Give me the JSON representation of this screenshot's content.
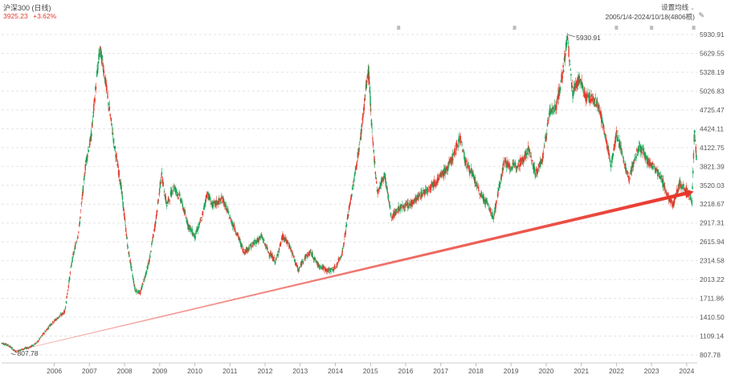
{
  "header": {
    "title": "沪深300 (日线)",
    "price": "3925.23",
    "change": "+3.62%",
    "settings_label": "设置均线",
    "date_range": "2005/1/4-2024/10/18(4806根)"
  },
  "colors": {
    "up": "#e23b2e",
    "down": "#12a150",
    "trend": "#e8352a",
    "grid": "#e3e3e3"
  },
  "chart_data": {
    "type": "candlestick",
    "y_ticks": [
      "5930.91",
      "5629.55",
      "5328.19",
      "5026.83",
      "4725.47",
      "4424.11",
      "4122.75",
      "3821.39",
      "3520.03",
      "3218.67",
      "2917.31",
      "2615.94",
      "2314.58",
      "2013.22",
      "1711.86",
      "1410.50",
      "1109.14",
      "807.78"
    ],
    "ylim": [
      807.78,
      5930.91
    ],
    "x_ticks": [
      "2006",
      "2007",
      "2008",
      "2009",
      "2010",
      "2011",
      "2012",
      "2013",
      "2014",
      "2015",
      "2016",
      "2017",
      "2018",
      "2019",
      "2020",
      "2021",
      "2022",
      "2023",
      "2024"
    ],
    "xlim": [
      2005.0,
      2024.8
    ],
    "peak": {
      "label": "5930.91",
      "x": 2021.1,
      "value": 5930.91
    },
    "low": {
      "label": "807.78",
      "x": 2005.4,
      "value": 807.78
    },
    "trendline": {
      "start": {
        "x": 2005.6,
        "value": 900
      },
      "end": {
        "x": 2024.7,
        "value": 3420
      }
    },
    "series": [
      {
        "x": 2005.0,
        "value": 1000
      },
      {
        "x": 2005.2,
        "value": 960
      },
      {
        "x": 2005.4,
        "value": 860
      },
      {
        "x": 2005.6,
        "value": 900
      },
      {
        "x": 2005.8,
        "value": 930
      },
      {
        "x": 2006.0,
        "value": 1000
      },
      {
        "x": 2006.2,
        "value": 1150
      },
      {
        "x": 2006.4,
        "value": 1300
      },
      {
        "x": 2006.6,
        "value": 1400
      },
      {
        "x": 2006.8,
        "value": 1500
      },
      {
        "x": 2007.0,
        "value": 2300
      },
      {
        "x": 2007.2,
        "value": 2800
      },
      {
        "x": 2007.4,
        "value": 3900
      },
      {
        "x": 2007.55,
        "value": 4300
      },
      {
        "x": 2007.7,
        "value": 5200
      },
      {
        "x": 2007.8,
        "value": 5700
      },
      {
        "x": 2007.9,
        "value": 5400
      },
      {
        "x": 2008.0,
        "value": 5000
      },
      {
        "x": 2008.2,
        "value": 4200
      },
      {
        "x": 2008.4,
        "value": 3500
      },
      {
        "x": 2008.6,
        "value": 2500
      },
      {
        "x": 2008.8,
        "value": 1850
      },
      {
        "x": 2008.95,
        "value": 1800
      },
      {
        "x": 2009.2,
        "value": 2300
      },
      {
        "x": 2009.4,
        "value": 3000
      },
      {
        "x": 2009.55,
        "value": 3700
      },
      {
        "x": 2009.7,
        "value": 3200
      },
      {
        "x": 2009.9,
        "value": 3500
      },
      {
        "x": 2010.1,
        "value": 3300
      },
      {
        "x": 2010.3,
        "value": 2900
      },
      {
        "x": 2010.5,
        "value": 2700
      },
      {
        "x": 2010.7,
        "value": 3000
      },
      {
        "x": 2010.85,
        "value": 3400
      },
      {
        "x": 2011.0,
        "value": 3200
      },
      {
        "x": 2011.3,
        "value": 3300
      },
      {
        "x": 2011.5,
        "value": 3000
      },
      {
        "x": 2011.7,
        "value": 2750
      },
      {
        "x": 2011.9,
        "value": 2450
      },
      {
        "x": 2012.2,
        "value": 2600
      },
      {
        "x": 2012.4,
        "value": 2700
      },
      {
        "x": 2012.6,
        "value": 2450
      },
      {
        "x": 2012.8,
        "value": 2300
      },
      {
        "x": 2013.0,
        "value": 2700
      },
      {
        "x": 2013.2,
        "value": 2550
      },
      {
        "x": 2013.45,
        "value": 2150
      },
      {
        "x": 2013.6,
        "value": 2350
      },
      {
        "x": 2013.8,
        "value": 2450
      },
      {
        "x": 2014.0,
        "value": 2250
      },
      {
        "x": 2014.3,
        "value": 2150
      },
      {
        "x": 2014.5,
        "value": 2200
      },
      {
        "x": 2014.7,
        "value": 2450
      },
      {
        "x": 2014.85,
        "value": 3000
      },
      {
        "x": 2015.0,
        "value": 3500
      },
      {
        "x": 2015.2,
        "value": 4200
      },
      {
        "x": 2015.4,
        "value": 5200
      },
      {
        "x": 2015.45,
        "value": 5350
      },
      {
        "x": 2015.55,
        "value": 4300
      },
      {
        "x": 2015.7,
        "value": 3400
      },
      {
        "x": 2015.9,
        "value": 3700
      },
      {
        "x": 2016.1,
        "value": 3000
      },
      {
        "x": 2016.3,
        "value": 3150
      },
      {
        "x": 2016.6,
        "value": 3200
      },
      {
        "x": 2016.9,
        "value": 3350
      },
      {
        "x": 2017.1,
        "value": 3450
      },
      {
        "x": 2017.4,
        "value": 3600
      },
      {
        "x": 2017.7,
        "value": 3800
      },
      {
        "x": 2017.9,
        "value": 4050
      },
      {
        "x": 2018.05,
        "value": 4300
      },
      {
        "x": 2018.2,
        "value": 3900
      },
      {
        "x": 2018.4,
        "value": 3700
      },
      {
        "x": 2018.6,
        "value": 3400
      },
      {
        "x": 2018.8,
        "value": 3250
      },
      {
        "x": 2019.0,
        "value": 3000
      },
      {
        "x": 2019.3,
        "value": 3900
      },
      {
        "x": 2019.5,
        "value": 3800
      },
      {
        "x": 2019.8,
        "value": 3900
      },
      {
        "x": 2020.0,
        "value": 4100
      },
      {
        "x": 2020.2,
        "value": 3700
      },
      {
        "x": 2020.4,
        "value": 3950
      },
      {
        "x": 2020.6,
        "value": 4700
      },
      {
        "x": 2020.8,
        "value": 4800
      },
      {
        "x": 2021.0,
        "value": 5400
      },
      {
        "x": 2021.1,
        "value": 5900
      },
      {
        "x": 2021.25,
        "value": 5000
      },
      {
        "x": 2021.45,
        "value": 5250
      },
      {
        "x": 2021.6,
        "value": 4950
      },
      {
        "x": 2021.8,
        "value": 4900
      },
      {
        "x": 2022.0,
        "value": 4800
      },
      {
        "x": 2022.2,
        "value": 4250
      },
      {
        "x": 2022.35,
        "value": 3850
      },
      {
        "x": 2022.5,
        "value": 4350
      },
      {
        "x": 2022.7,
        "value": 3950
      },
      {
        "x": 2022.85,
        "value": 3600
      },
      {
        "x": 2023.0,
        "value": 3900
      },
      {
        "x": 2023.15,
        "value": 4150
      },
      {
        "x": 2023.4,
        "value": 3900
      },
      {
        "x": 2023.6,
        "value": 3800
      },
      {
        "x": 2023.8,
        "value": 3600
      },
      {
        "x": 2024.0,
        "value": 3300
      },
      {
        "x": 2024.1,
        "value": 3200
      },
      {
        "x": 2024.3,
        "value": 3550
      },
      {
        "x": 2024.5,
        "value": 3450
      },
      {
        "x": 2024.65,
        "value": 3250
      },
      {
        "x": 2024.72,
        "value": 4400
      },
      {
        "x": 2024.78,
        "value": 3925
      }
    ]
  }
}
